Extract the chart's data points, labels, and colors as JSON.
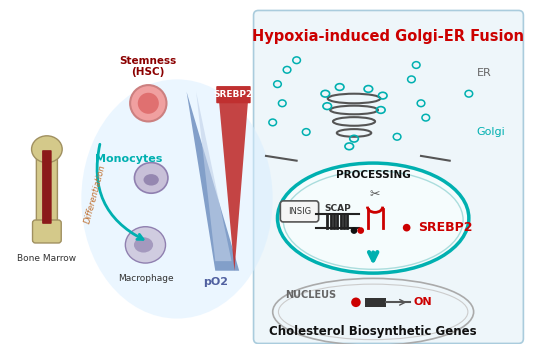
{
  "title": "Hypoxia-induced Golgi-ER Fusion",
  "title_color": "#cc0000",
  "bg_color": "#ffffff",
  "left_panel": {
    "bone_marrow_label": "Bone Marrow",
    "stemness_label": "Stemness\n(HSC)",
    "monocytes_label": "Monocytes",
    "macrophage_label": "Macrophage",
    "differentiation_label": "Differentiation",
    "pO2_label": "pO2",
    "srebp2_label": "SREBP2"
  },
  "right_panel": {
    "er_label": "ER",
    "golgi_label": "Golgi",
    "processing_label": "PROCESSING",
    "insig_label": "INSIG",
    "scap_label": "SCAP",
    "srebp2_label": "SREBP2",
    "nucleus_label": "NUCLEUS",
    "on_label": "ON",
    "cholesterol_label": "Cholesterol Biosynthetic Genes"
  },
  "colors": {
    "teal": "#00b0b0",
    "dark_red": "#8b0000",
    "red": "#cc0000",
    "blue_triangle": "#6080c0",
    "red_triangle": "#c03030",
    "golgi_circle": "#00b8c8",
    "er_curve": "#555555",
    "cell_membrane": "#20a0b0",
    "dark_gray": "#333333",
    "light_blue_bg": "#ddeeff"
  }
}
